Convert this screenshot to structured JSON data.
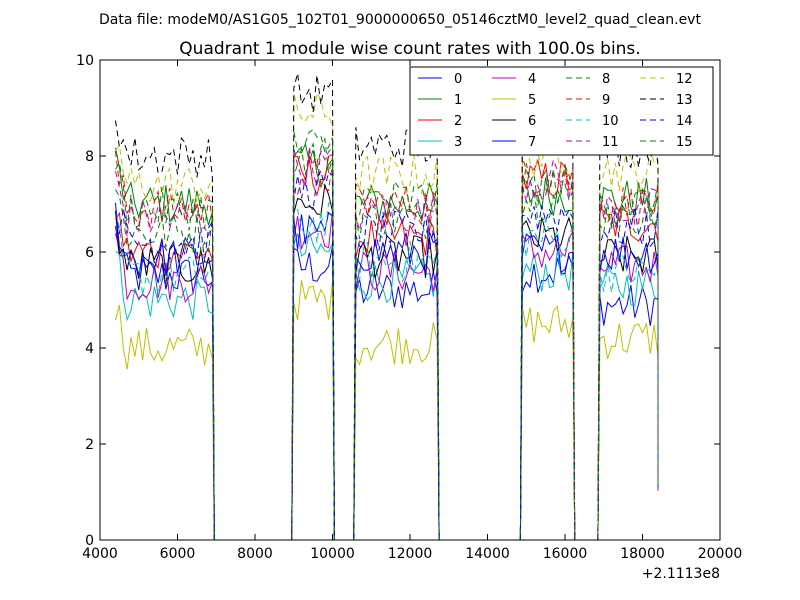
{
  "header": {
    "datafile": "Data file: modeM0/AS1G05_102T01_9000000650_05146cztM0_level2_quad_clean.evt"
  },
  "chart_data": {
    "type": "line",
    "title": "Quadrant 1 module wise count rates with 100.0s bins.",
    "xlabel": "",
    "ylabel": "",
    "x_offset_label": "+2.1113e8",
    "xlim": [
      4000,
      20000
    ],
    "ylim": [
      0,
      10
    ],
    "xticks": [
      4000,
      6000,
      8000,
      10000,
      12000,
      14000,
      16000,
      18000,
      20000
    ],
    "xtick_labels": [
      "4000",
      "6000",
      "8000",
      "10000",
      "12000",
      "14000",
      "16000",
      "18000",
      "20000"
    ],
    "yticks": [
      0,
      2,
      4,
      6,
      8,
      10
    ],
    "ytick_labels": [
      "0",
      "2",
      "4",
      "6",
      "8",
      "10"
    ],
    "grid": false,
    "legend_placement": "top-right",
    "x_segments_on": [
      [
        4400,
        6900
      ],
      [
        9000,
        10000
      ],
      [
        10600,
        12700
      ],
      [
        14900,
        16200
      ],
      [
        16900,
        18400
      ]
    ],
    "x_segments_off": [
      [
        6900,
        9000
      ],
      [
        10000,
        10600
      ],
      [
        12700,
        14900
      ],
      [
        16200,
        16900
      ]
    ],
    "series": [
      {
        "name": "0",
        "color": "#0000ff",
        "dash": "solid",
        "levels": [
          5.5,
          5.7,
          5.2,
          5.6,
          4.9
        ]
      },
      {
        "name": "1",
        "color": "#008000",
        "dash": "solid",
        "levels": [
          7.0,
          7.8,
          7.0,
          7.2,
          7.1
        ]
      },
      {
        "name": "2",
        "color": "#ff0000",
        "dash": "solid",
        "levels": [
          6.0,
          7.6,
          6.3,
          7.5,
          6.6
        ]
      },
      {
        "name": "3",
        "color": "#00bfbf",
        "dash": "solid",
        "levels": [
          5.0,
          6.0,
          5.4,
          5.6,
          5.3
        ]
      },
      {
        "name": "4",
        "color": "#bf00bf",
        "dash": "solid",
        "levels": [
          5.4,
          6.5,
          5.6,
          6.0,
          5.7
        ]
      },
      {
        "name": "5",
        "color": "#bfbf00",
        "dash": "solid",
        "levels": [
          4.0,
          5.0,
          4.1,
          4.5,
          4.2
        ]
      },
      {
        "name": "6",
        "color": "#000000",
        "dash": "solid",
        "levels": [
          5.7,
          7.0,
          5.9,
          6.3,
          5.9
        ]
      },
      {
        "name": "7",
        "color": "#0000ff",
        "dash": "solid",
        "levels": [
          5.9,
          6.4,
          6.0,
          6.0,
          6.0
        ]
      },
      {
        "name": "8",
        "color": "#008000",
        "dash": "dashed",
        "levels": [
          6.4,
          8.0,
          6.7,
          7.1,
          6.8
        ]
      },
      {
        "name": "9",
        "color": "#ff0000",
        "dash": "dashed",
        "levels": [
          6.9,
          7.6,
          7.0,
          7.6,
          7.0
        ]
      },
      {
        "name": "10",
        "color": "#00bfbf",
        "dash": "dashed",
        "levels": [
          5.5,
          6.6,
          5.8,
          6.3,
          5.6
        ]
      },
      {
        "name": "11",
        "color": "#bf00bf",
        "dash": "dashed",
        "levels": [
          6.7,
          7.8,
          6.8,
          7.5,
          6.9
        ]
      },
      {
        "name": "12",
        "color": "#bfbf00",
        "dash": "dashed",
        "levels": [
          7.4,
          8.9,
          7.6,
          8.0,
          7.7
        ]
      },
      {
        "name": "13",
        "color": "#000000",
        "dash": "dashed",
        "levels": [
          8.0,
          9.3,
          8.2,
          8.6,
          8.2
        ]
      },
      {
        "name": "14",
        "color": "#0000ff",
        "dash": "dashed",
        "levels": [
          6.2,
          7.3,
          6.4,
          6.8,
          6.5
        ]
      },
      {
        "name": "15",
        "color": "#008000",
        "dash": "dashed",
        "levels": [
          6.9,
          8.2,
          7.1,
          7.4,
          7.0
        ]
      }
    ]
  }
}
